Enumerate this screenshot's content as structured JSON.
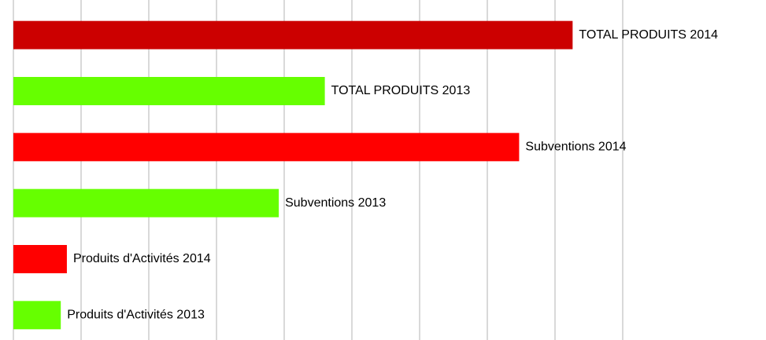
{
  "chart_data": {
    "type": "bar",
    "orientation": "horizontal",
    "categories": [
      "TOTAL PRODUITS 2014",
      "TOTAL PRODUITS 2013",
      "Subventions 2014",
      "Subventions 2013",
      "Produits d'Activités 2014",
      "Produits d'Activités 2013"
    ],
    "values": [
      8.26,
      4.6,
      7.47,
      3.92,
      0.79,
      0.7
    ],
    "colors": [
      "#cc0000",
      "#66ff00",
      "#ff0000",
      "#66ff00",
      "#ff0000",
      "#66ff00"
    ],
    "xlim": [
      0,
      9
    ],
    "xticks": [
      0,
      1,
      2,
      3,
      4,
      5,
      6,
      7,
      8,
      9
    ],
    "grid": true
  }
}
